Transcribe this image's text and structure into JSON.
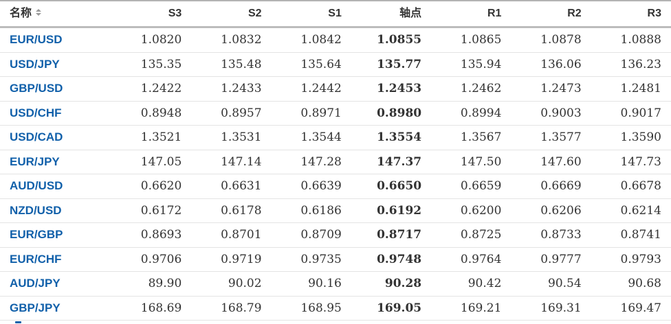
{
  "widget": {
    "type": "pivot-points-table",
    "colors": {
      "pair_link": "#1160aa",
      "text": "#333333",
      "header_border": "#bcbcbc",
      "row_separator": "#e4e4e4",
      "top_border": "#b3b3b3",
      "sort_arrows": "#9a9a9a"
    }
  },
  "table": {
    "columns": [
      {
        "key": "name",
        "label": "名称",
        "sortable": true,
        "align": "left"
      },
      {
        "key": "s3",
        "label": "S3",
        "sortable": false,
        "align": "right"
      },
      {
        "key": "s2",
        "label": "S2",
        "sortable": false,
        "align": "right"
      },
      {
        "key": "s1",
        "label": "S1",
        "sortable": false,
        "align": "right"
      },
      {
        "key": "pivot",
        "label": "轴点",
        "sortable": false,
        "align": "right"
      },
      {
        "key": "r1",
        "label": "R1",
        "sortable": false,
        "align": "right"
      },
      {
        "key": "r2",
        "label": "R2",
        "sortable": false,
        "align": "right"
      },
      {
        "key": "r3",
        "label": "R3",
        "sortable": false,
        "align": "right"
      }
    ],
    "rows": [
      {
        "name": "EUR/USD",
        "s3": "1.0820",
        "s2": "1.0832",
        "s1": "1.0842",
        "pivot": "1.0855",
        "r1": "1.0865",
        "r2": "1.0878",
        "r3": "1.0888"
      },
      {
        "name": "USD/JPY",
        "s3": "135.35",
        "s2": "135.48",
        "s1": "135.64",
        "pivot": "135.77",
        "r1": "135.94",
        "r2": "136.06",
        "r3": "136.23"
      },
      {
        "name": "GBP/USD",
        "s3": "1.2422",
        "s2": "1.2433",
        "s1": "1.2442",
        "pivot": "1.2453",
        "r1": "1.2462",
        "r2": "1.2473",
        "r3": "1.2481"
      },
      {
        "name": "USD/CHF",
        "s3": "0.8948",
        "s2": "0.8957",
        "s1": "0.8971",
        "pivot": "0.8980",
        "r1": "0.8994",
        "r2": "0.9003",
        "r3": "0.9017"
      },
      {
        "name": "USD/CAD",
        "s3": "1.3521",
        "s2": "1.3531",
        "s1": "1.3544",
        "pivot": "1.3554",
        "r1": "1.3567",
        "r2": "1.3577",
        "r3": "1.3590"
      },
      {
        "name": "EUR/JPY",
        "s3": "147.05",
        "s2": "147.14",
        "s1": "147.28",
        "pivot": "147.37",
        "r1": "147.50",
        "r2": "147.60",
        "r3": "147.73"
      },
      {
        "name": "AUD/USD",
        "s3": "0.6620",
        "s2": "0.6631",
        "s1": "0.6639",
        "pivot": "0.6650",
        "r1": "0.6659",
        "r2": "0.6669",
        "r3": "0.6678"
      },
      {
        "name": "NZD/USD",
        "s3": "0.6172",
        "s2": "0.6178",
        "s1": "0.6186",
        "pivot": "0.6192",
        "r1": "0.6200",
        "r2": "0.6206",
        "r3": "0.6214"
      },
      {
        "name": "EUR/GBP",
        "s3": "0.8693",
        "s2": "0.8701",
        "s1": "0.8709",
        "pivot": "0.8717",
        "r1": "0.8725",
        "r2": "0.8733",
        "r3": "0.8741"
      },
      {
        "name": "EUR/CHF",
        "s3": "0.9706",
        "s2": "0.9719",
        "s1": "0.9735",
        "pivot": "0.9748",
        "r1": "0.9764",
        "r2": "0.9777",
        "r3": "0.9793"
      },
      {
        "name": "AUD/JPY",
        "s3": "89.90",
        "s2": "90.02",
        "s1": "90.16",
        "pivot": "90.28",
        "r1": "90.42",
        "r2": "90.54",
        "r3": "90.68"
      },
      {
        "name": "GBP/JPY",
        "s3": "168.69",
        "s2": "168.79",
        "s1": "168.95",
        "pivot": "169.05",
        "r1": "169.21",
        "r2": "169.31",
        "r3": "169.47"
      }
    ]
  }
}
